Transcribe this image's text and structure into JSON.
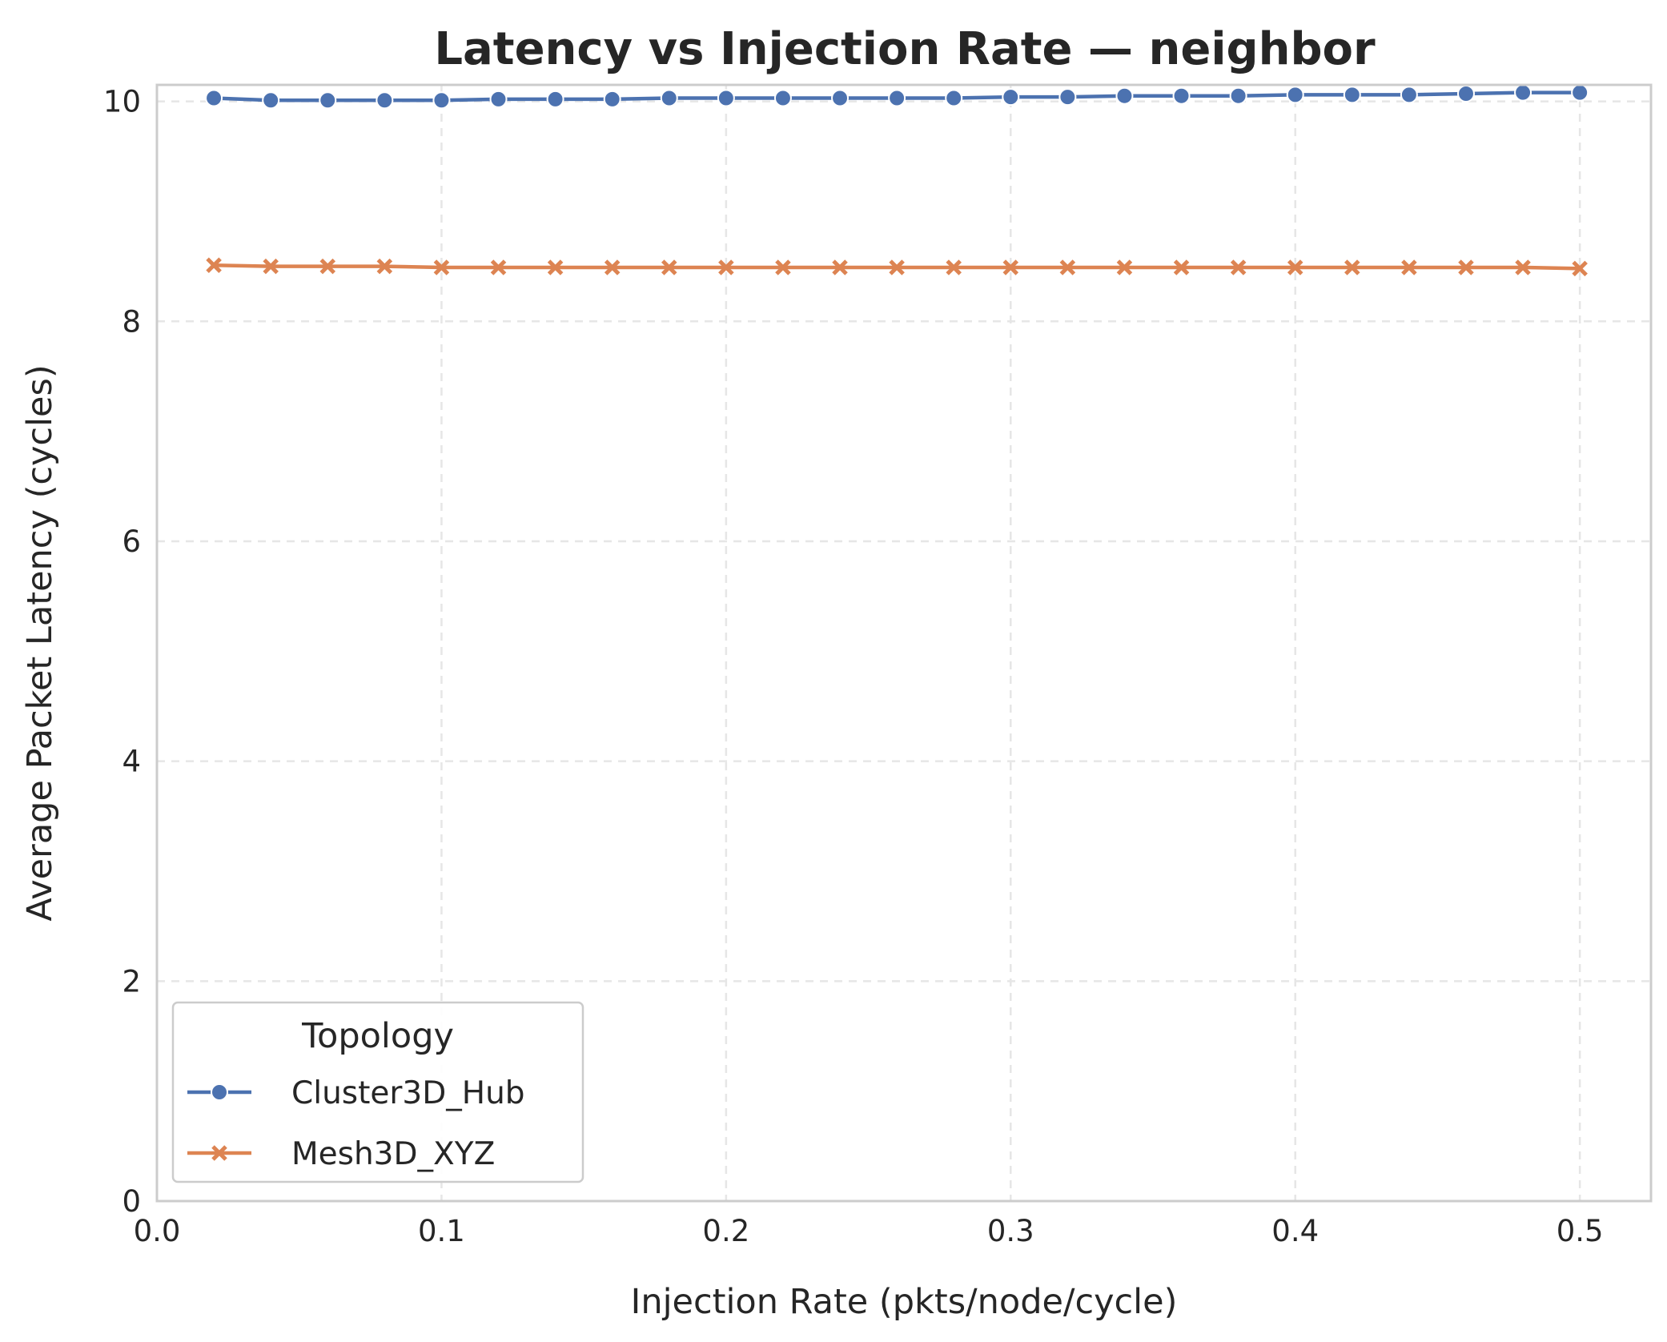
{
  "chart_data": {
    "type": "line",
    "title": "Latency vs Injection Rate — neighbor",
    "xlabel": "Injection Rate (pkts/node/cycle)",
    "ylabel": "Average Packet Latency (cycles)",
    "xlim": [
      -0.0,
      0.525
    ],
    "ylim": [
      0,
      10.15
    ],
    "xticks": [
      "0.0",
      "0.1",
      "0.2",
      "0.3",
      "0.4",
      "0.5"
    ],
    "xtick_values": [
      0.0,
      0.1,
      0.2,
      0.3,
      0.4,
      0.5
    ],
    "yticks": [
      "0",
      "2",
      "4",
      "6",
      "8",
      "10"
    ],
    "ytick_values": [
      0,
      2,
      4,
      6,
      8,
      10
    ],
    "grid": true,
    "legend": {
      "title": "Topology",
      "position": "lower-left"
    },
    "x": [
      0.02,
      0.04,
      0.06,
      0.08,
      0.1,
      0.12,
      0.14,
      0.16,
      0.18,
      0.2,
      0.22,
      0.24,
      0.26,
      0.28,
      0.3,
      0.32,
      0.34,
      0.36,
      0.38,
      0.4,
      0.42,
      0.44,
      0.46,
      0.48,
      0.5
    ],
    "series": [
      {
        "name": "Cluster3D_Hub",
        "color": "#4c72b0",
        "marker": "circle",
        "values": [
          10.03,
          10.01,
          10.01,
          10.01,
          10.01,
          10.02,
          10.02,
          10.02,
          10.03,
          10.03,
          10.03,
          10.03,
          10.03,
          10.03,
          10.04,
          10.04,
          10.05,
          10.05,
          10.05,
          10.06,
          10.06,
          10.06,
          10.07,
          10.08,
          10.08
        ]
      },
      {
        "name": "Mesh3D_XYZ",
        "color": "#dd8452",
        "marker": "x",
        "values": [
          8.51,
          8.5,
          8.5,
          8.5,
          8.49,
          8.49,
          8.49,
          8.49,
          8.49,
          8.49,
          8.49,
          8.49,
          8.49,
          8.49,
          8.49,
          8.49,
          8.49,
          8.49,
          8.49,
          8.49,
          8.49,
          8.49,
          8.49,
          8.49,
          8.48
        ]
      }
    ]
  }
}
